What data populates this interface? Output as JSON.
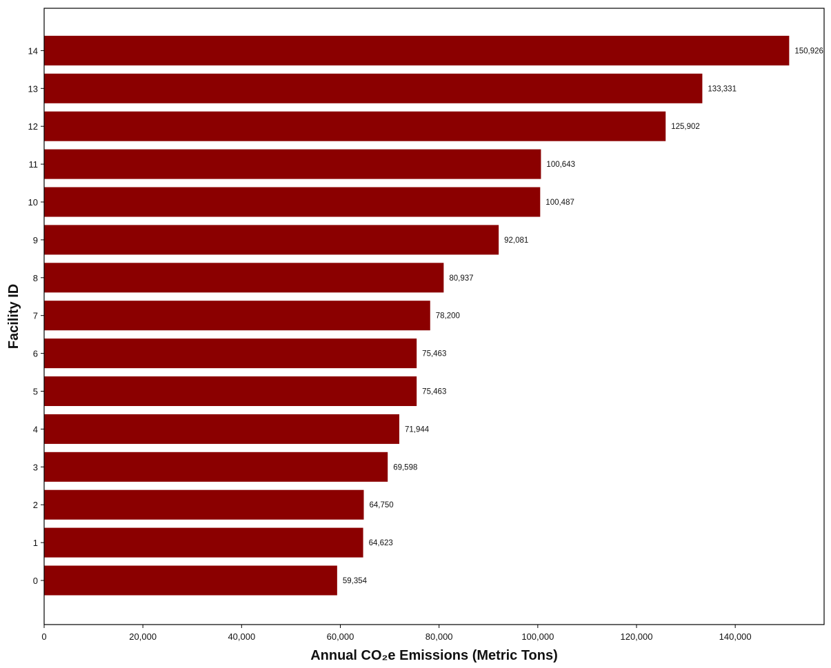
{
  "chart_data": {
    "type": "bar",
    "orientation": "horizontal",
    "title": "",
    "xlabel": "Annual CO₂e Emissions (Metric Tons)",
    "ylabel": "Facility ID",
    "categories": [
      "0",
      "1",
      "2",
      "3",
      "4",
      "5",
      "6",
      "7",
      "8",
      "9",
      "10",
      "11",
      "12",
      "13",
      "14"
    ],
    "values": [
      59354,
      64623,
      64750,
      69598,
      71944,
      75463,
      75463,
      78200,
      80937,
      92081,
      100487,
      100643,
      125902,
      133331,
      150926
    ],
    "data_labels": [
      "59,354",
      "64,623",
      "64,750",
      "69,598",
      "71,944",
      "75,463",
      "75,463",
      "78,200",
      "80,937",
      "92,081",
      "100,487",
      "100,643",
      "125,902",
      "133,331",
      "150,926"
    ],
    "xlim": [
      0,
      158000
    ],
    "x_ticks": [
      0,
      20000,
      40000,
      60000,
      80000,
      100000,
      120000,
      140000
    ],
    "x_tick_labels": [
      "0",
      "20,000",
      "40,000",
      "60,000",
      "80,000",
      "100,000",
      "120,000",
      "140,000"
    ],
    "grid": false,
    "legend": "none",
    "bar_color": "#8b0000"
  }
}
